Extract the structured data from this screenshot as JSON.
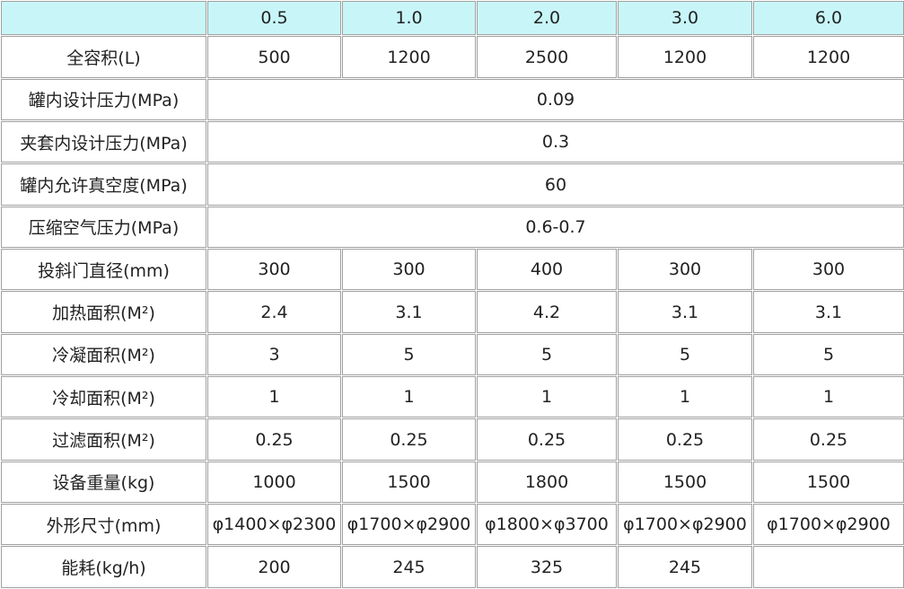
{
  "header": [
    "0.5",
    "1.0",
    "2.0",
    "3.0",
    "6.0"
  ],
  "rows": [
    {
      "label": "全容积(L)",
      "values": [
        "500",
        "1200",
        "2500",
        "1200",
        "1200"
      ]
    },
    {
      "label": "罐内设计压力(MPa)",
      "values": [
        "0.09"
      ]
    },
    {
      "label": "夹套内设计压力(MPa)",
      "values": [
        "0.3"
      ]
    },
    {
      "label": "罐内允许真空度(MPa)",
      "values": [
        "60"
      ]
    },
    {
      "label": "压缩空气压力(MPa)",
      "values": [
        "0.6-0.7"
      ]
    },
    {
      "label": "投斜门直径(mm)",
      "values": [
        "300",
        "300",
        "400",
        "300",
        "300"
      ]
    },
    {
      "label": "加热面积(M²)",
      "values": [
        "2.4",
        "3.1",
        "4.2",
        "3.1",
        "3.1"
      ]
    },
    {
      "label": "冷凝面积(M²)",
      "values": [
        "3",
        "5",
        "5",
        "5",
        "5"
      ]
    },
    {
      "label": "冷却面积(M²)",
      "values": [
        "1",
        "1",
        "1",
        "1",
        "1"
      ]
    },
    {
      "label": "过滤面积(M²)",
      "values": [
        "0.25",
        "0.25",
        "0.25",
        "0.25",
        "0.25"
      ]
    },
    {
      "label": "设备重量(kg)",
      "values": [
        "1000",
        "1500",
        "1800",
        "1500",
        "1500"
      ]
    },
    {
      "label": "外形尺寸(mm)",
      "values": [
        "φ1400×φ2300",
        "φ1700×φ2900",
        "φ1800×φ3700",
        "φ1700×φ2900",
        "φ1700×φ2900"
      ]
    },
    {
      "label": "能耗(kg/h)",
      "values": [
        "200",
        "245",
        "325",
        "245"
      ]
    }
  ]
}
